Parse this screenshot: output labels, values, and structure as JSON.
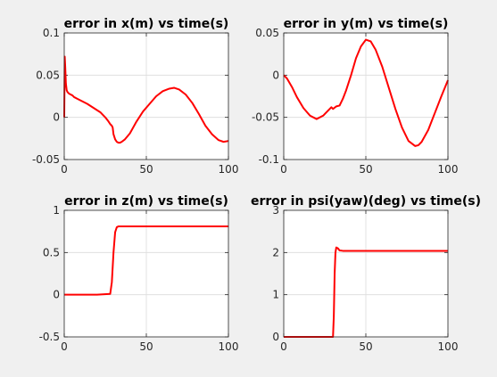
{
  "figure": {
    "background": "#f0f0f0"
  },
  "chart_data": [
    {
      "type": "line",
      "title": "error in x(m) vs time(s)",
      "xlabel": "",
      "ylabel": "",
      "xlim": [
        0,
        100
      ],
      "ylim": [
        -0.05,
        0.1
      ],
      "xticks": [
        0,
        50,
        100
      ],
      "yticks": [
        -0.05,
        0,
        0.05,
        0.1
      ],
      "xtick_labels": [
        "0",
        "50",
        "100"
      ],
      "ytick_labels": [
        "-0.05",
        "0",
        "0.05",
        "0.1"
      ],
      "grid": true,
      "line_color": "#ff0000",
      "series": [
        {
          "x": [
            0,
            0.3,
            0.6,
            1,
            1.5,
            2,
            3,
            4,
            5,
            6,
            8,
            10,
            14,
            18,
            22,
            25,
            27,
            28,
            29,
            29.5,
            30,
            31,
            32,
            33,
            34,
            35,
            37,
            40,
            44,
            48,
            52,
            56,
            60,
            64,
            67,
            70,
            74,
            78,
            82,
            86,
            90,
            94,
            97,
            100
          ],
          "y": [
            0,
            0.072,
            0.06,
            0.04,
            0.032,
            0.03,
            0.028,
            0.027,
            0.026,
            0.024,
            0.022,
            0.02,
            0.016,
            0.011,
            0.006,
            0.0,
            -0.005,
            -0.008,
            -0.01,
            -0.012,
            -0.02,
            -0.026,
            -0.029,
            -0.03,
            -0.03,
            -0.029,
            -0.026,
            -0.019,
            -0.005,
            0.007,
            0.016,
            0.025,
            0.031,
            0.034,
            0.035,
            0.033,
            0.027,
            0.017,
            0.004,
            -0.01,
            -0.02,
            -0.027,
            -0.029,
            -0.028
          ]
        }
      ]
    },
    {
      "type": "line",
      "title": "error in y(m) vs time(s)",
      "xlabel": "",
      "ylabel": "",
      "xlim": [
        0,
        100
      ],
      "ylim": [
        -0.1,
        0.05
      ],
      "xticks": [
        0,
        50,
        100
      ],
      "yticks": [
        -0.1,
        -0.05,
        0,
        0.05
      ],
      "xtick_labels": [
        "0",
        "50",
        "100"
      ],
      "ytick_labels": [
        "-0.1",
        "-0.05",
        "0",
        "0.05"
      ],
      "grid": true,
      "line_color": "#ff0000",
      "series": [
        {
          "x": [
            0,
            2,
            5,
            8,
            12,
            16,
            20,
            24,
            27,
            29,
            30,
            32,
            34,
            36,
            38,
            41,
            44,
            47,
            50,
            53,
            56,
            60,
            64,
            68,
            72,
            76,
            80,
            82,
            84,
            88,
            92,
            96,
            100
          ],
          "y": [
            0,
            -0.004,
            -0.014,
            -0.026,
            -0.039,
            -0.048,
            -0.052,
            -0.048,
            -0.042,
            -0.038,
            -0.04,
            -0.037,
            -0.036,
            -0.028,
            -0.018,
            0.0,
            0.02,
            0.034,
            0.042,
            0.04,
            0.03,
            0.01,
            -0.015,
            -0.04,
            -0.062,
            -0.078,
            -0.084,
            -0.083,
            -0.079,
            -0.065,
            -0.045,
            -0.025,
            -0.006
          ]
        }
      ]
    },
    {
      "type": "line",
      "title": "error in z(m) vs time(s)",
      "xlabel": "",
      "ylabel": "",
      "xlim": [
        0,
        100
      ],
      "ylim": [
        -0.5,
        1
      ],
      "xticks": [
        0,
        50,
        100
      ],
      "yticks": [
        -0.5,
        0,
        0.5,
        1
      ],
      "xtick_labels": [
        "0",
        "50",
        "100"
      ],
      "ytick_labels": [
        "-0.5",
        "0",
        "0.5",
        "1"
      ],
      "grid": true,
      "line_color": "#ff0000",
      "series": [
        {
          "x": [
            0,
            10,
            20,
            28,
            29,
            30,
            31,
            32,
            33,
            34,
            36,
            40,
            50,
            60,
            70,
            80,
            90,
            100
          ],
          "y": [
            0,
            0,
            0,
            0.01,
            0.15,
            0.5,
            0.74,
            0.8,
            0.81,
            0.81,
            0.81,
            0.81,
            0.81,
            0.81,
            0.81,
            0.81,
            0.81,
            0.81
          ]
        }
      ]
    },
    {
      "type": "line",
      "title": "error in psi(yaw)(deg) vs time(s)",
      "xlabel": "",
      "ylabel": "",
      "xlim": [
        0,
        100
      ],
      "ylim": [
        0,
        3
      ],
      "xticks": [
        0,
        50,
        100
      ],
      "yticks": [
        0,
        1,
        2,
        3
      ],
      "xtick_labels": [
        "0",
        "50",
        "100"
      ],
      "ytick_labels": [
        "0",
        "1",
        "2",
        "3"
      ],
      "grid": true,
      "line_color": "#ff0000",
      "series": [
        {
          "x": [
            0,
            10,
            20,
            30,
            30.5,
            31,
            31.5,
            32,
            33,
            34,
            36,
            40,
            50,
            60,
            70,
            80,
            90,
            100
          ],
          "y": [
            0,
            0,
            0,
            0,
            0.5,
            1.5,
            2.0,
            2.12,
            2.1,
            2.05,
            2.04,
            2.04,
            2.04,
            2.04,
            2.04,
            2.04,
            2.04,
            2.04
          ]
        }
      ]
    }
  ]
}
